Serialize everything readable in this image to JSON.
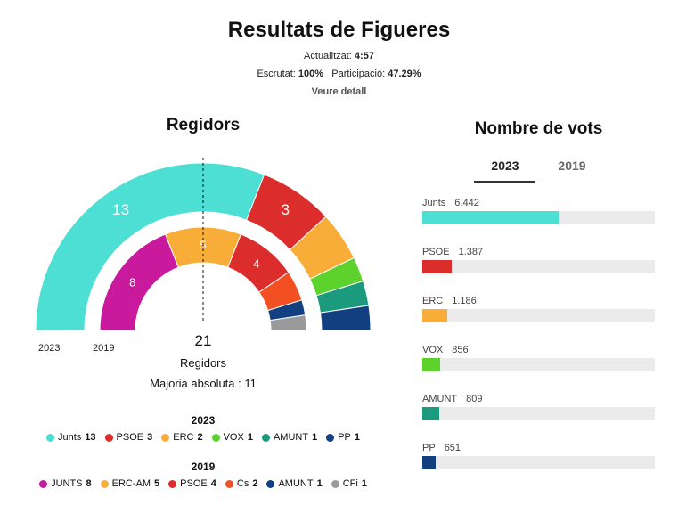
{
  "header": {
    "title": "Resultats de Figueres",
    "updated_label": "Actualitzat:",
    "updated_time": "4:57",
    "scrutiny_label": "Escrutat:",
    "scrutiny_value": "100%",
    "participation_label": "Participació:",
    "participation_value": "47.29%",
    "detail_link": "Veure detall"
  },
  "seats": {
    "title": "Regidors",
    "year_outer": "2023",
    "year_inner": "2019",
    "total": "21",
    "total_label": "Regidors",
    "majority": "Majoria absoluta : 11"
  },
  "votes": {
    "title": "Nombre de vots",
    "tabs": [
      "2023",
      "2019"
    ],
    "active_tab": "2023"
  },
  "chart_data": [
    {
      "type": "pie",
      "name": "2023",
      "total_seats": 21,
      "slices": [
        {
          "party": "Junts",
          "seats": 13,
          "color": "#4ddfd3"
        },
        {
          "party": "PSOE",
          "seats": 3,
          "color": "#dc2d2d"
        },
        {
          "party": "ERC",
          "seats": 2,
          "color": "#f9ad39"
        },
        {
          "party": "VOX",
          "seats": 1,
          "color": "#5ed22c"
        },
        {
          "party": "AMUNT",
          "seats": 1,
          "color": "#1c9a7e"
        },
        {
          "party": "PP",
          "seats": 1,
          "color": "#123f7f"
        }
      ]
    },
    {
      "type": "pie",
      "name": "2019",
      "total_seats": 21,
      "slices": [
        {
          "party": "JUNTS",
          "seats": 8,
          "color": "#c9199c"
        },
        {
          "party": "ERC-AM",
          "seats": 5,
          "color": "#f9ad39"
        },
        {
          "party": "PSOE",
          "seats": 4,
          "color": "#dc2d2d"
        },
        {
          "party": "Cs",
          "seats": 2,
          "color": "#f24f22"
        },
        {
          "party": "AMUNT",
          "seats": 1,
          "color": "#123f7f"
        },
        {
          "party": "CFi",
          "seats": 1,
          "color": "#9a9a9a"
        }
      ]
    },
    {
      "type": "bar",
      "name": "2023",
      "categories": [
        "Junts",
        "PSOE",
        "ERC",
        "VOX",
        "AMUNT",
        "PP"
      ],
      "values": [
        6442,
        1387,
        1186,
        856,
        809,
        651
      ],
      "labels": [
        "6.442",
        "1.387",
        "1.186",
        "856",
        "809",
        "651"
      ],
      "colors": [
        "#4ddfd3",
        "#dc2d2d",
        "#f9ad39",
        "#5ed22c",
        "#1c9a7e",
        "#123f7f"
      ],
      "xlim": [
        0,
        11000
      ]
    }
  ]
}
